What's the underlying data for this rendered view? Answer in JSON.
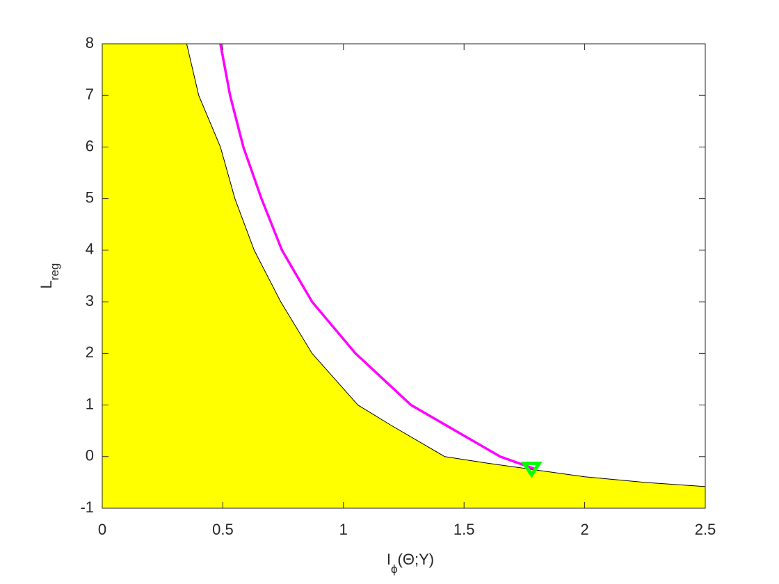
{
  "chart_data": {
    "type": "line",
    "xlabel": {
      "main": "I",
      "sub": "ϕ",
      "rest": "(Θ;Y)"
    },
    "ylabel": {
      "main": "L",
      "sub": "reg"
    },
    "xlim": [
      0,
      2.5
    ],
    "ylim": [
      -1,
      8
    ],
    "xticks": [
      0,
      0.5,
      1,
      1.5,
      2,
      2.5
    ],
    "yticks": [
      -1,
      0,
      1,
      2,
      3,
      4,
      5,
      6,
      7,
      8
    ],
    "grid": false,
    "series": [
      {
        "style": "area",
        "color": "#000000",
        "fill": "#ffff00",
        "x": [
          0.35,
          0.4,
          0.49,
          0.55,
          0.63,
          0.74,
          0.87,
          1.06,
          1.2,
          1.42,
          1.6,
          1.8,
          2.0,
          2.25,
          2.5
        ],
        "values": [
          8,
          7,
          6,
          5,
          4,
          3,
          2,
          1,
          0.6,
          0,
          -0.13,
          -0.26,
          -0.39,
          -0.5,
          -0.58
        ]
      },
      {
        "style": "line",
        "color": "#ff00ff",
        "x": [
          0.49,
          0.53,
          0.585,
          0.66,
          0.745,
          0.87,
          1.05,
          1.28,
          1.65,
          1.8
        ],
        "values": [
          8,
          7,
          6,
          5,
          4,
          3,
          2,
          1,
          0,
          -0.25
        ]
      },
      {
        "style": "marker",
        "color": "#00ff00",
        "x": [
          1.78
        ],
        "values": [
          -0.22
        ]
      }
    ]
  }
}
